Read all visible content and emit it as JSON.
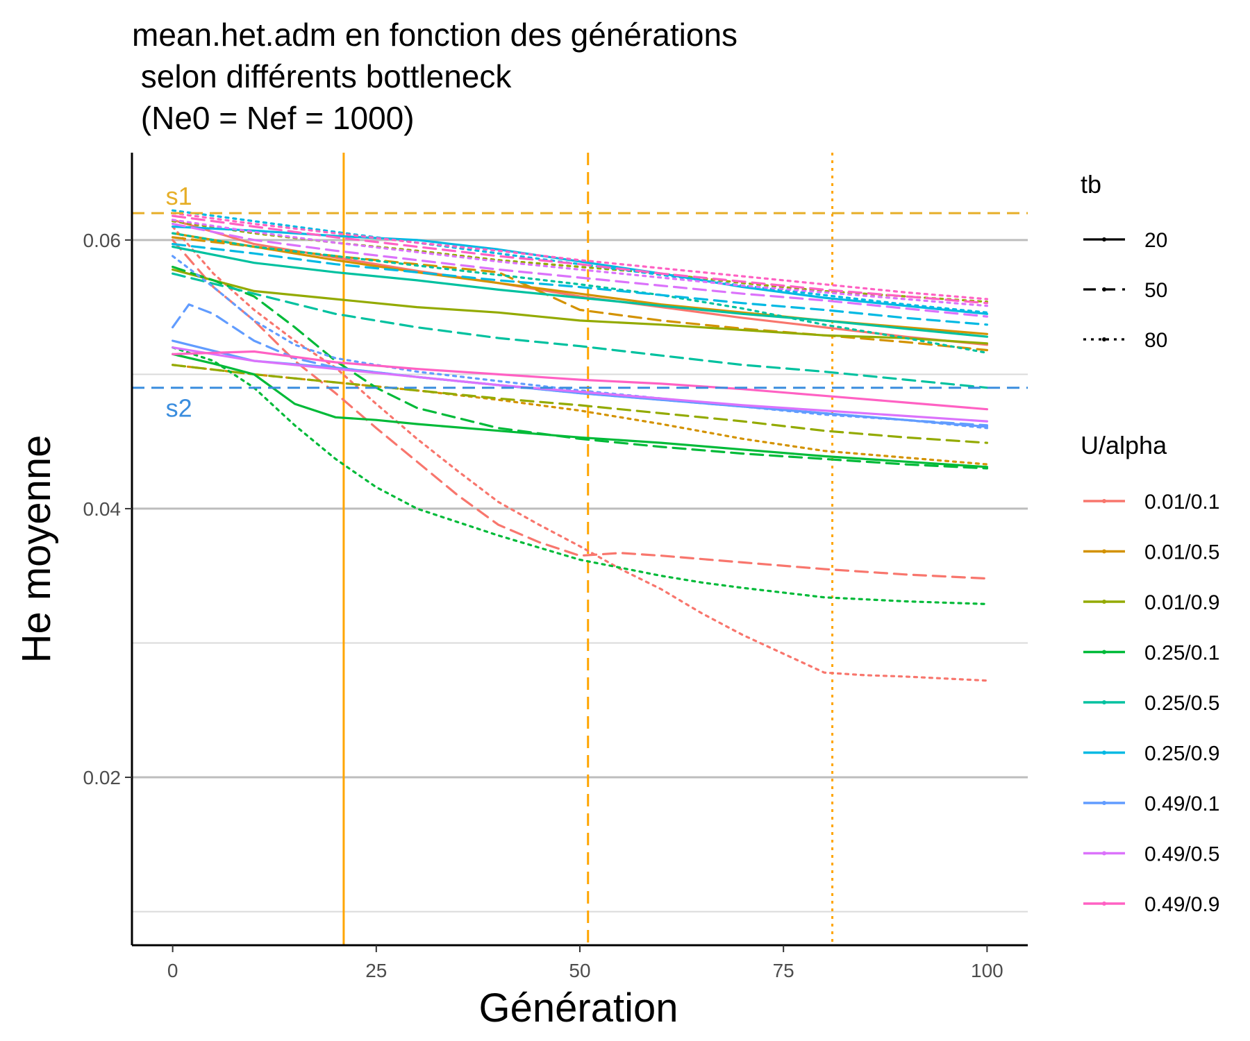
{
  "chart_data": {
    "type": "line",
    "title": "mean.het.adm en fonction des générations\n selon différents bottleneck\n (Ne0 = Nef = 1000)",
    "xlabel": "Génération",
    "ylabel": "He moyenne",
    "xlim": [
      -5,
      105
    ],
    "ylim": [
      0.0075,
      0.0665
    ],
    "x_ticks": [
      0,
      25,
      50,
      75,
      100
    ],
    "x_tick_labels": [
      "0",
      "25",
      "50",
      "75",
      "100"
    ],
    "y_ticks": [
      0.02,
      0.04,
      0.06
    ],
    "y_tick_labels": [
      "0.02",
      "0.04",
      "0.06"
    ],
    "y_minor_grid": [
      0.01,
      0.03,
      0.05
    ],
    "grid": "horizontal",
    "legend_placement": "right",
    "legend_tb": {
      "title": "tb",
      "items": [
        {
          "label": "20",
          "dash": "solid"
        },
        {
          "label": "50",
          "dash": "dashed"
        },
        {
          "label": "80",
          "dash": "dotted"
        }
      ]
    },
    "legend_ualpha": {
      "title": "U/alpha",
      "items": [
        {
          "label": "0.01/0.1",
          "color": "#F8766D"
        },
        {
          "label": "0.01/0.5",
          "color": "#D39200"
        },
        {
          "label": "0.01/0.9",
          "color": "#93AA00"
        },
        {
          "label": "0.25/0.1",
          "color": "#00BA38"
        },
        {
          "label": "0.25/0.5",
          "color": "#00C19F"
        },
        {
          "label": "0.25/0.9",
          "color": "#00B9E3"
        },
        {
          "label": "0.49/0.1",
          "color": "#619CFF"
        },
        {
          "label": "0.49/0.5",
          "color": "#DB72FB"
        },
        {
          "label": "0.49/0.9",
          "color": "#FF61C3"
        }
      ]
    },
    "reference_lines": {
      "horizontal": [
        {
          "label": "s1",
          "y": 0.062,
          "color": "#E6AE27",
          "dash": "dashed"
        },
        {
          "label": "s2",
          "y": 0.049,
          "color": "#3A8DDE",
          "dash": "dashed"
        }
      ],
      "vertical": [
        {
          "x": 21,
          "color": "#FFA500",
          "dash": "solid"
        },
        {
          "x": 51,
          "color": "#FFA500",
          "dash": "dashed"
        },
        {
          "x": 81,
          "color": "#FFA500",
          "dash": "dotted"
        }
      ]
    },
    "series": [
      {
        "ualpha": "0.01/0.1",
        "tb": "20",
        "x": [
          0,
          10,
          20,
          30,
          40,
          50,
          60,
          70,
          80,
          90,
          100
        ],
        "y": [
          0.0615,
          0.0597,
          0.0587,
          0.0577,
          0.0568,
          0.0558,
          0.055,
          0.0542,
          0.0535,
          0.0528,
          0.0522
        ]
      },
      {
        "ualpha": "0.01/0.1",
        "tb": "50",
        "x": [
          0,
          5,
          10,
          15,
          20,
          25,
          30,
          35,
          40,
          45,
          50,
          55,
          60,
          70,
          80,
          90,
          100
        ],
        "y": [
          0.06,
          0.0565,
          0.054,
          0.051,
          0.0486,
          0.046,
          0.0435,
          0.041,
          0.0388,
          0.0375,
          0.0365,
          0.0367,
          0.0365,
          0.036,
          0.0355,
          0.0351,
          0.0348
        ]
      },
      {
        "ualpha": "0.01/0.1",
        "tb": "80",
        "x": [
          0,
          5,
          10,
          15,
          20,
          25,
          30,
          35,
          40,
          45,
          50,
          55,
          60,
          65,
          70,
          75,
          80,
          85,
          90,
          100
        ],
        "y": [
          0.061,
          0.0575,
          0.0548,
          0.0525,
          0.0505,
          0.0478,
          0.0452,
          0.0428,
          0.0405,
          0.0388,
          0.0372,
          0.0355,
          0.034,
          0.0322,
          0.0306,
          0.0292,
          0.0278,
          0.0276,
          0.0275,
          0.0272
        ]
      },
      {
        "ualpha": "0.01/0.5",
        "tb": "20",
        "x": [
          0,
          10,
          20,
          30,
          40,
          50,
          60,
          70,
          80,
          90,
          100
        ],
        "y": [
          0.0605,
          0.0595,
          0.0585,
          0.0576,
          0.0568,
          0.056,
          0.0552,
          0.0546,
          0.054,
          0.0535,
          0.053
        ]
      },
      {
        "ualpha": "0.01/0.5",
        "tb": "50",
        "x": [
          0,
          10,
          20,
          30,
          40,
          50,
          60,
          70,
          80,
          90,
          100
        ],
        "y": [
          0.0602,
          0.0595,
          0.0588,
          0.0582,
          0.0576,
          0.0548,
          0.054,
          0.0534,
          0.0529,
          0.0524,
          0.0518
        ]
      },
      {
        "ualpha": "0.01/0.5",
        "tb": "80",
        "x": [
          0,
          10,
          20,
          30,
          40,
          50,
          60,
          70,
          80,
          90,
          100
        ],
        "y": [
          0.0507,
          0.05,
          0.0494,
          0.0488,
          0.0481,
          0.0473,
          0.0463,
          0.0452,
          0.0443,
          0.0438,
          0.0433
        ]
      },
      {
        "ualpha": "0.01/0.9",
        "tb": "20",
        "x": [
          0,
          10,
          20,
          30,
          40,
          50,
          60,
          70,
          80,
          90,
          100
        ],
        "y": [
          0.0578,
          0.0562,
          0.0556,
          0.055,
          0.0546,
          0.054,
          0.0537,
          0.0533,
          0.0529,
          0.0527,
          0.0523
        ]
      },
      {
        "ualpha": "0.01/0.9",
        "tb": "50",
        "x": [
          0,
          10,
          20,
          30,
          40,
          50,
          60,
          70,
          80,
          90,
          100
        ],
        "y": [
          0.0507,
          0.05,
          0.0494,
          0.0488,
          0.0482,
          0.0477,
          0.0471,
          0.0465,
          0.0458,
          0.0453,
          0.0449
        ]
      },
      {
        "ualpha": "0.01/0.9",
        "tb": "80",
        "x": [
          0,
          10,
          20,
          30,
          40,
          50,
          60,
          70,
          80,
          90,
          100
        ],
        "y": [
          0.0614,
          0.0605,
          0.0598,
          0.0592,
          0.0585,
          0.058,
          0.0575,
          0.0568,
          0.0562,
          0.0558,
          0.0554
        ]
      },
      {
        "ualpha": "0.25/0.1",
        "tb": "20",
        "x": [
          0,
          5,
          10,
          15,
          20,
          25,
          30,
          40,
          50,
          60,
          70,
          80,
          90,
          100
        ],
        "y": [
          0.0515,
          0.0508,
          0.05,
          0.0478,
          0.0468,
          0.0466,
          0.0463,
          0.0458,
          0.0453,
          0.0449,
          0.0444,
          0.0439,
          0.0435,
          0.0431
        ]
      },
      {
        "ualpha": "0.25/0.1",
        "tb": "50",
        "x": [
          0,
          5,
          10,
          15,
          20,
          25,
          30,
          40,
          50,
          60,
          70,
          80,
          90,
          100
        ],
        "y": [
          0.058,
          0.057,
          0.0558,
          0.0535,
          0.051,
          0.049,
          0.0475,
          0.046,
          0.0452,
          0.0446,
          0.0441,
          0.0437,
          0.0433,
          0.043
        ]
      },
      {
        "ualpha": "0.25/0.1",
        "tb": "80",
        "x": [
          0,
          5,
          10,
          15,
          20,
          25,
          30,
          35,
          40,
          45,
          50,
          55,
          60,
          65,
          70,
          80,
          90,
          100
        ],
        "y": [
          0.052,
          0.051,
          0.049,
          0.0462,
          0.0437,
          0.0416,
          0.04,
          0.039,
          0.038,
          0.0371,
          0.0362,
          0.0356,
          0.035,
          0.0345,
          0.0341,
          0.0334,
          0.0331,
          0.0329
        ]
      },
      {
        "ualpha": "0.25/0.5",
        "tb": "20",
        "x": [
          0,
          10,
          20,
          30,
          40,
          50,
          60,
          70,
          80,
          90,
          100
        ],
        "y": [
          0.0595,
          0.0583,
          0.0576,
          0.057,
          0.0563,
          0.0557,
          0.0551,
          0.0545,
          0.054,
          0.0534,
          0.0528
        ]
      },
      {
        "ualpha": "0.25/0.5",
        "tb": "50",
        "x": [
          0,
          10,
          20,
          30,
          40,
          50,
          60,
          70,
          80,
          90,
          100
        ],
        "y": [
          0.0575,
          0.056,
          0.0545,
          0.0535,
          0.0527,
          0.0521,
          0.0514,
          0.0507,
          0.0502,
          0.0496,
          0.049
        ]
      },
      {
        "ualpha": "0.25/0.5",
        "tb": "80",
        "x": [
          0,
          10,
          20,
          30,
          40,
          50,
          60,
          70,
          80,
          90,
          100
        ],
        "y": [
          0.0605,
          0.0595,
          0.0588,
          0.0581,
          0.0574,
          0.0567,
          0.0559,
          0.0549,
          0.0537,
          0.0527,
          0.0516
        ]
      },
      {
        "ualpha": "0.25/0.9",
        "tb": "20",
        "x": [
          0,
          10,
          20,
          30,
          40,
          50,
          60,
          70,
          80,
          90,
          100
        ],
        "y": [
          0.061,
          0.0607,
          0.0603,
          0.06,
          0.0593,
          0.0584,
          0.0575,
          0.0565,
          0.0557,
          0.0551,
          0.0545
        ]
      },
      {
        "ualpha": "0.25/0.9",
        "tb": "50",
        "x": [
          0,
          10,
          20,
          30,
          40,
          50,
          60,
          70,
          80,
          90,
          100
        ],
        "y": [
          0.0597,
          0.059,
          0.0582,
          0.0576,
          0.057,
          0.0565,
          0.0559,
          0.0553,
          0.0548,
          0.0542,
          0.0537
        ]
      },
      {
        "ualpha": "0.25/0.9",
        "tb": "80",
        "x": [
          0,
          10,
          20,
          30,
          40,
          50,
          60,
          70,
          80,
          90,
          100
        ],
        "y": [
          0.0622,
          0.0614,
          0.0606,
          0.0598,
          0.059,
          0.0582,
          0.0574,
          0.0566,
          0.0559,
          0.0552,
          0.0546
        ]
      },
      {
        "ualpha": "0.49/0.1",
        "tb": "20",
        "x": [
          0,
          10,
          20,
          30,
          40,
          50,
          60,
          70,
          80,
          90,
          100
        ],
        "y": [
          0.0525,
          0.051,
          0.0505,
          0.0498,
          0.0492,
          0.0486,
          0.0481,
          0.0476,
          0.0471,
          0.0466,
          0.0461
        ]
      },
      {
        "ualpha": "0.49/0.1",
        "tb": "50",
        "x": [
          0,
          2,
          5,
          10,
          15,
          20,
          30,
          40,
          50,
          60,
          70,
          80,
          90,
          100
        ],
        "y": [
          0.0535,
          0.0552,
          0.0545,
          0.0525,
          0.0512,
          0.0505,
          0.0498,
          0.0492,
          0.0486,
          0.0481,
          0.0476,
          0.0471,
          0.0466,
          0.0462
        ]
      },
      {
        "ualpha": "0.49/0.1",
        "tb": "80",
        "x": [
          0,
          5,
          10,
          15,
          20,
          30,
          40,
          50,
          60,
          70,
          80,
          90,
          100
        ],
        "y": [
          0.0588,
          0.0565,
          0.054,
          0.0522,
          0.0512,
          0.0502,
          0.0495,
          0.0488,
          0.0482,
          0.0476,
          0.047,
          0.0466,
          0.046
        ]
      },
      {
        "ualpha": "0.49/0.5",
        "tb": "20",
        "x": [
          0,
          10,
          20,
          30,
          40,
          50,
          60,
          70,
          80,
          90,
          100
        ],
        "y": [
          0.052,
          0.051,
          0.0504,
          0.0498,
          0.0492,
          0.0487,
          0.0482,
          0.0477,
          0.0473,
          0.0469,
          0.0465
        ]
      },
      {
        "ualpha": "0.49/0.5",
        "tb": "50",
        "x": [
          0,
          10,
          20,
          30,
          40,
          50,
          60,
          70,
          80,
          90,
          100
        ],
        "y": [
          0.0612,
          0.06,
          0.0592,
          0.0585,
          0.0578,
          0.0572,
          0.0566,
          0.056,
          0.0555,
          0.0549,
          0.0543
        ]
      },
      {
        "ualpha": "0.49/0.5",
        "tb": "80",
        "x": [
          0,
          10,
          20,
          30,
          40,
          50,
          60,
          70,
          80,
          90,
          100
        ],
        "y": [
          0.0615,
          0.0606,
          0.0598,
          0.0591,
          0.0584,
          0.0578,
          0.0572,
          0.0566,
          0.0561,
          0.0556,
          0.0551
        ]
      },
      {
        "ualpha": "0.49/0.9",
        "tb": "20",
        "x": [
          0,
          10,
          20,
          30,
          40,
          50,
          60,
          70,
          80,
          90,
          100
        ],
        "y": [
          0.0515,
          0.0517,
          0.0509,
          0.0504,
          0.05,
          0.0496,
          0.0493,
          0.0489,
          0.0484,
          0.0479,
          0.0474
        ]
      },
      {
        "ualpha": "0.49/0.9",
        "tb": "50",
        "x": [
          0,
          10,
          20,
          30,
          40,
          50,
          60,
          70,
          80,
          90,
          100
        ],
        "y": [
          0.0618,
          0.061,
          0.0602,
          0.0595,
          0.0588,
          0.0582,
          0.0575,
          0.0569,
          0.0563,
          0.0558,
          0.0553
        ]
      },
      {
        "ualpha": "0.49/0.9",
        "tb": "80",
        "x": [
          0,
          10,
          20,
          30,
          40,
          50,
          60,
          70,
          80,
          90,
          100
        ],
        "y": [
          0.062,
          0.0612,
          0.0605,
          0.0598,
          0.0592,
          0.0585,
          0.0579,
          0.0573,
          0.0567,
          0.0561,
          0.0556
        ]
      }
    ]
  }
}
